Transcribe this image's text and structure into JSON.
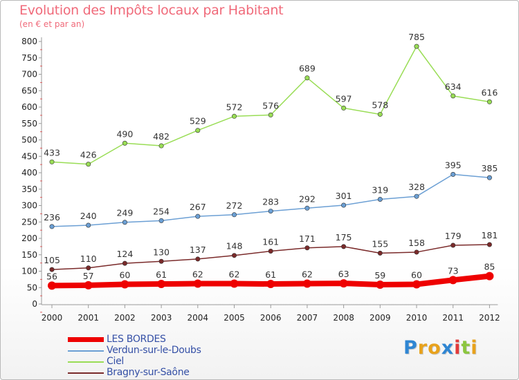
{
  "chart_data": {
    "type": "line",
    "title": "Evolution des Impôts locaux par Habitant",
    "subtitle": "(en € et par an)",
    "xlabel": "",
    "ylabel": "",
    "ylim": [
      0,
      800
    ],
    "ytick_step": 50,
    "grid": false,
    "legend_position": "bottom-left",
    "categories": [
      "2000",
      "2001",
      "2002",
      "2003",
      "2004",
      "2005",
      "2006",
      "2007",
      "2008",
      "2009",
      "2010",
      "2011",
      "2012"
    ],
    "series": [
      {
        "name": "LES BORDES",
        "color": "#ee0000",
        "emphasis": true,
        "values": [
          56,
          57,
          60,
          61,
          62,
          62,
          61,
          62,
          63,
          59,
          60,
          73,
          85
        ]
      },
      {
        "name": "Verdun-sur-le-Doubs",
        "color": "#6b9fd4",
        "emphasis": false,
        "values": [
          236,
          240,
          249,
          254,
          267,
          272,
          283,
          292,
          301,
          319,
          328,
          395,
          385
        ]
      },
      {
        "name": "Ciel",
        "color": "#99dd55",
        "emphasis": false,
        "values": [
          433,
          426,
          490,
          482,
          529,
          572,
          576,
          689,
          597,
          578,
          785,
          634,
          616
        ]
      },
      {
        "name": "Bragny-sur-Saône",
        "color": "#7a2a2a",
        "emphasis": false,
        "values": [
          105,
          110,
          124,
          130,
          137,
          148,
          161,
          171,
          175,
          155,
          158,
          179,
          181
        ]
      }
    ]
  },
  "logo": {
    "letters": [
      "P",
      "r",
      "o",
      "x",
      "i",
      "t",
      "i"
    ],
    "colors": [
      "#2f86d3",
      "#e8a21c",
      "#e8a21c",
      "#2f86d3",
      "#e23b3b",
      "#8cc63f",
      "#e8a21c"
    ]
  }
}
